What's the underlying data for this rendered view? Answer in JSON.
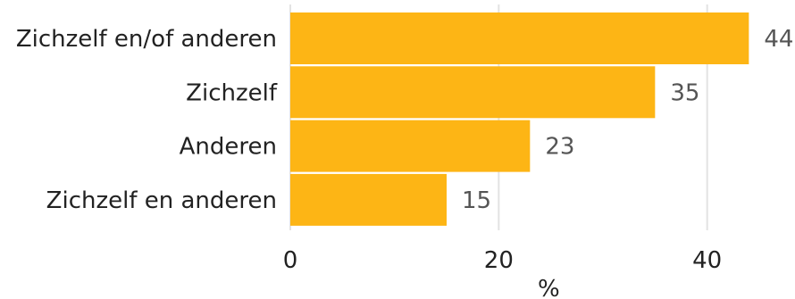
{
  "chart_data": {
    "type": "bar",
    "orientation": "horizontal",
    "categories": [
      "Zichzelf en/of anderen",
      "Zichzelf",
      "Anderen",
      "Zichzelf en anderen"
    ],
    "values": [
      44,
      35,
      23,
      15
    ],
    "value_labels": [
      "44",
      "35",
      "23",
      "15"
    ],
    "xticks": [
      0,
      20,
      40
    ],
    "xtick_labels": [
      "0",
      "20",
      "40"
    ],
    "xlim": [
      0,
      48
    ],
    "xlabel": "%",
    "grid": true,
    "bar_color": "#fdb515"
  }
}
